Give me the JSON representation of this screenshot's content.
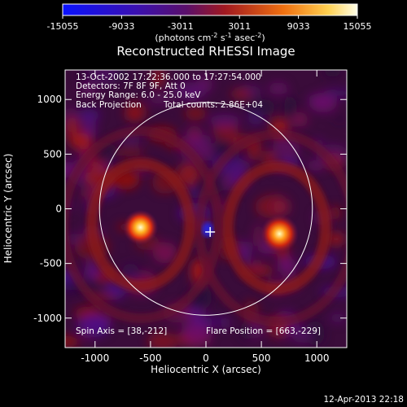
{
  "colorbar": {
    "ticks": [
      "-15055",
      "-9033",
      "-3011",
      "3011",
      "9033",
      "15055"
    ],
    "unit_main": "(photons cm",
    "unit_sup1": "-2",
    "unit_mid": " s",
    "unit_sup2": "-1",
    "unit_end": " asec",
    "unit_sup3": "-2",
    "unit_close": ")",
    "range": [
      -15055,
      15055
    ],
    "colors": [
      "#0a12ff",
      "#4b0f8a",
      "#6a0f4a",
      "#c41a14",
      "#f08010",
      "#ffffe0"
    ]
  },
  "chart_data": {
    "type": "heatmap",
    "title": "Reconstructed RHESSI Image",
    "xlabel": "Heliocentric X (arcsec)",
    "ylabel": "Heliocentric Y (arcsec)",
    "xlim": [
      -1270,
      1270
    ],
    "ylim": [
      -1270,
      1270
    ],
    "xticks": [
      "-1000",
      "-500",
      "0",
      "500",
      "1000"
    ],
    "yticks": [
      "1000",
      "500",
      "0",
      "-500",
      "-1000"
    ],
    "xtick_values": [
      -1000,
      -500,
      0,
      500,
      1000
    ],
    "ytick_values": [
      1000,
      500,
      0,
      -500,
      -1000
    ],
    "annotations": [
      "13-Oct-2002 17:22:36.000 to 17:27:54.000",
      "Detectors: 7F 8F 9F, Att 0",
      "Energy Range: 6.0 - 25.0 keV",
      "Back Projection",
      "Total counts: 2.86E+04"
    ],
    "spin_axis_label": "Spin Axis = [38,-212]",
    "flare_position_label": "Flare Position = [663,-229]",
    "spin_axis": [
      38,
      -212
    ],
    "flare_position": [
      663,
      -229
    ],
    "mirror_source": [
      -590,
      -170
    ],
    "solar_limb_radius": 960
  },
  "footer": {
    "timestamp": "12-Apr-2013 22:18"
  }
}
